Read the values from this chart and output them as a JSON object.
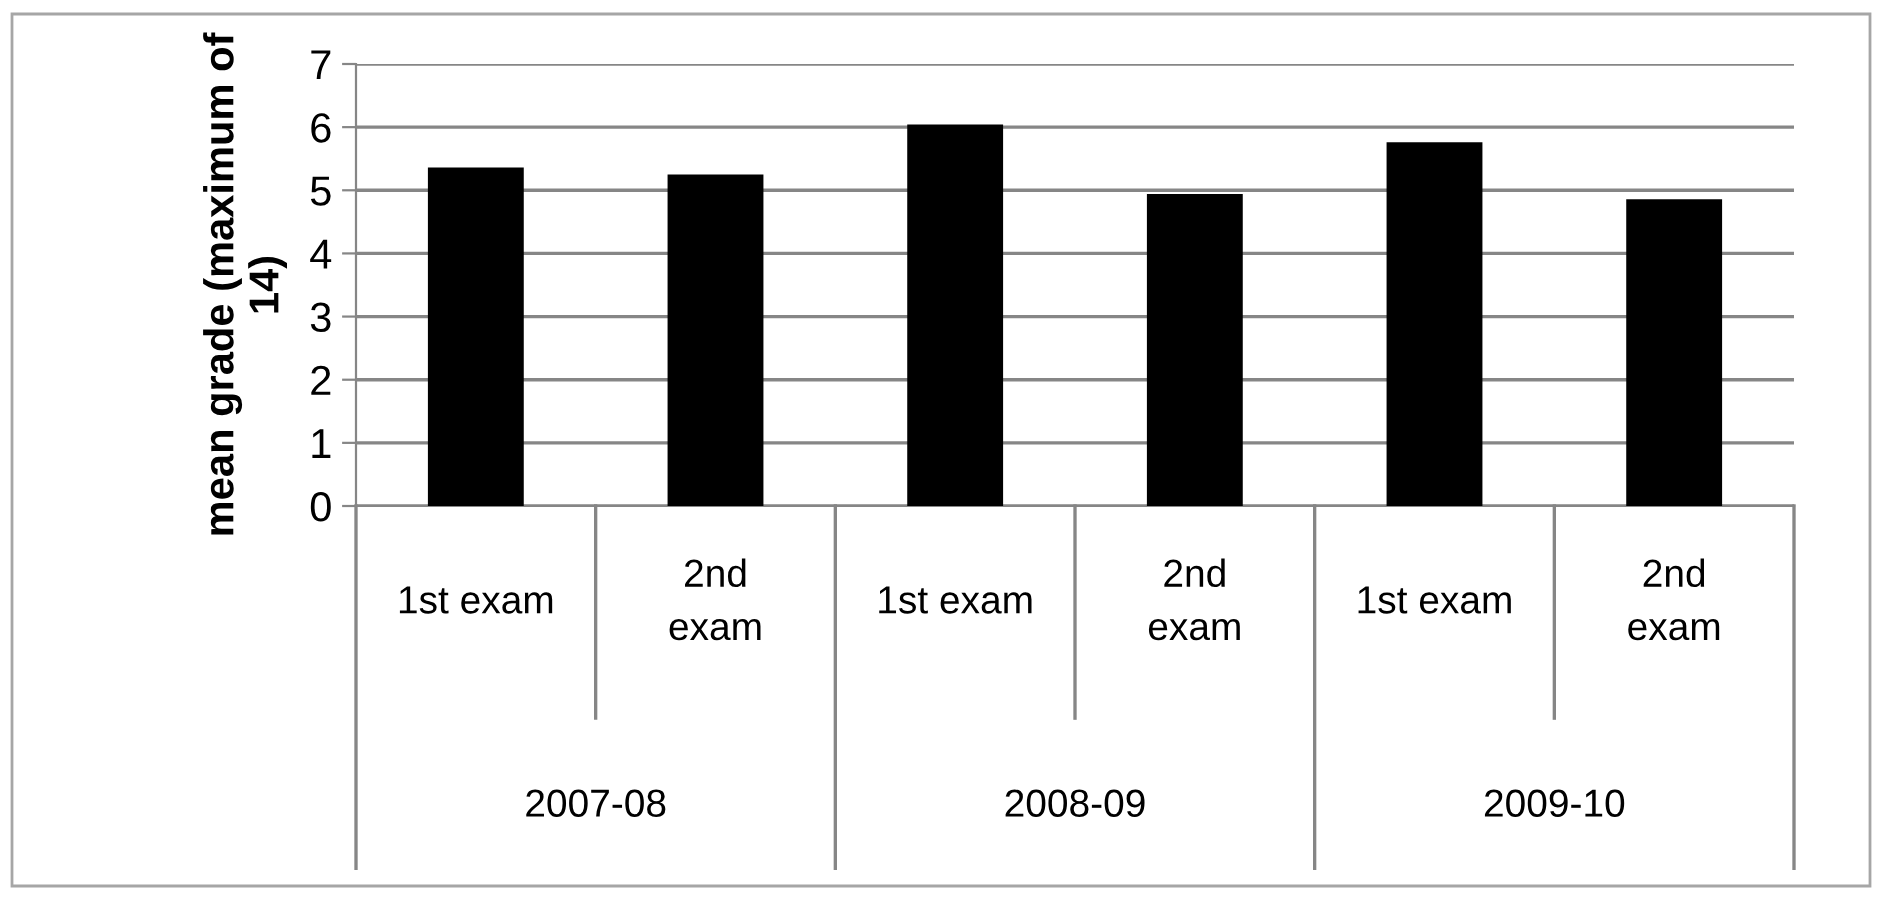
{
  "chart_data": {
    "type": "bar",
    "ylabel": "mean grade (maximum of\n14)",
    "categories": [
      "1st exam",
      "2nd\nexam",
      "1st exam",
      "2nd\nexam",
      "1st exam",
      "2nd\nexam"
    ],
    "values": [
      5.36,
      5.25,
      6.04,
      4.94,
      5.76,
      4.86
    ],
    "color": "#000000",
    "annotations": [
      "2007-08",
      "2008-09",
      "2009-10"
    ],
    "ylim": [
      0,
      7
    ],
    "yticks": [
      0,
      1,
      2,
      3,
      4,
      5,
      6,
      7
    ],
    "grid": "y",
    "legend": false
  }
}
